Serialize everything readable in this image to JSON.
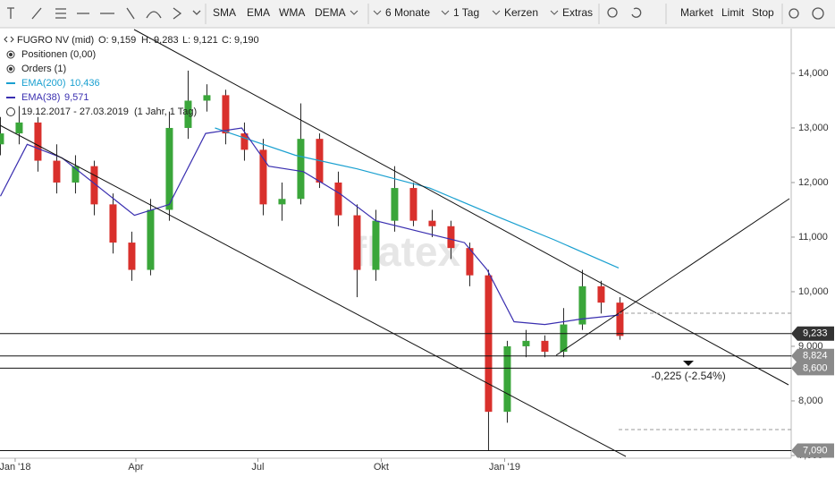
{
  "toolbar": {
    "indicators": [
      "SMA",
      "EMA",
      "WMA",
      "DEMA"
    ],
    "period": "6 Monate",
    "interval": "1 Tag",
    "style": "Kerzen",
    "extras": "Extras",
    "orders": [
      "Market",
      "Limit",
      "Stop"
    ]
  },
  "info": {
    "instrument": "FUGRO NV (mid)",
    "ohlc": [
      "O: 9,159",
      "H: 9,283",
      "L: 9,121",
      "C: 9,190"
    ],
    "positions": "Positionen (0,00)",
    "orders": "Orders (1)",
    "ema200": [
      "EMA(200)",
      "10,436"
    ],
    "ema38": [
      "EMA(38)",
      "9,571"
    ],
    "range": "19.12.2017 - 27.03.2019",
    "range_note": "(1 Jahr, 1 Tag)"
  },
  "chart_data": {
    "type": "candlestick",
    "watermark": "flatex",
    "xlim": [
      -11.3,
      578.7
    ],
    "xticks": [
      {
        "value": 0,
        "label": "Jan '18"
      },
      {
        "value": 90,
        "label": "Apr"
      },
      {
        "value": 181,
        "label": "Jul"
      },
      {
        "value": 273,
        "label": "Okt"
      },
      {
        "value": 365,
        "label": "Jan '19"
      }
    ],
    "ylim": [
      6.95,
      14.77
    ],
    "yticks": [
      {
        "value": 7,
        "label": "7,000"
      },
      {
        "value": 8,
        "label": "8,000"
      },
      {
        "value": 9,
        "label": "9,000"
      },
      {
        "value": 10,
        "label": "10,000"
      },
      {
        "value": 11,
        "label": "11,000"
      },
      {
        "value": 12,
        "label": "12,000"
      },
      {
        "value": 13,
        "label": "13,000"
      },
      {
        "value": 14,
        "label": "14,000"
      }
    ],
    "candles": {
      "up_color": "#3aa63a",
      "down_color": "#d9302c",
      "x": [
        -11,
        3,
        17,
        31,
        45,
        59,
        73,
        87,
        101,
        115,
        129,
        143,
        157,
        171,
        185,
        199,
        213,
        227,
        241,
        255,
        269,
        283,
        297,
        311,
        325,
        339,
        353,
        367,
        381,
        395,
        409,
        423,
        437,
        451
      ],
      "open": [
        12.7,
        12.9,
        13.1,
        12.4,
        12.0,
        12.3,
        11.6,
        10.9,
        10.4,
        11.5,
        13.0,
        13.5,
        13.6,
        12.9,
        12.6,
        11.6,
        11.7,
        12.8,
        12.0,
        11.4,
        10.4,
        11.3,
        11.9,
        11.3,
        11.2,
        10.8,
        10.3,
        7.8,
        9.0,
        9.1,
        8.9,
        9.4,
        10.1,
        9.8
      ],
      "high": [
        13.2,
        13.4,
        13.2,
        12.7,
        12.5,
        12.4,
        11.8,
        11.1,
        11.7,
        13.3,
        14.05,
        13.8,
        13.7,
        13.1,
        12.8,
        12.0,
        13.45,
        12.9,
        12.2,
        11.6,
        11.5,
        12.3,
        12.0,
        11.5,
        11.3,
        10.9,
        10.4,
        9.1,
        9.3,
        9.2,
        9.7,
        10.4,
        10.2,
        9.9
      ],
      "low": [
        12.5,
        12.7,
        12.2,
        11.8,
        11.8,
        11.4,
        10.7,
        10.2,
        10.3,
        11.3,
        12.8,
        13.3,
        12.7,
        12.4,
        11.4,
        11.3,
        11.6,
        11.9,
        11.2,
        9.9,
        10.2,
        11.1,
        11.2,
        11.0,
        10.6,
        10.1,
        7.09,
        7.6,
        8.8,
        8.8,
        8.8,
        9.3,
        9.6,
        9.12
      ],
      "close": [
        12.9,
        13.1,
        12.4,
        12.0,
        12.3,
        11.6,
        10.9,
        10.4,
        11.5,
        13.0,
        13.5,
        13.6,
        12.9,
        12.6,
        11.6,
        11.7,
        12.8,
        12.0,
        11.4,
        10.4,
        11.3,
        11.9,
        11.3,
        11.2,
        10.8,
        10.3,
        7.8,
        9.0,
        9.1,
        8.9,
        9.4,
        10.1,
        9.8,
        9.19
      ]
    },
    "series": [
      {
        "name": "EMA(200)",
        "color": "#1aa0d0",
        "x": [
          149,
          209,
          255,
          309,
          362,
          402,
          450
        ],
        "values": [
          13.0,
          12.5,
          12.25,
          11.9,
          11.35,
          10.95,
          10.436
        ]
      },
      {
        "name": "EMA(38)",
        "color": "#3a2fb0",
        "x": [
          -11,
          9,
          35,
          89,
          115,
          142,
          169,
          189,
          215,
          242,
          269,
          302,
          335,
          352,
          372,
          395,
          422,
          450
        ],
        "values": [
          11.75,
          12.7,
          12.45,
          11.4,
          11.6,
          12.9,
          13.0,
          12.3,
          12.2,
          11.8,
          11.3,
          11.1,
          10.9,
          10.4,
          9.45,
          9.4,
          9.5,
          9.571
        ]
      }
    ],
    "price_lines": [
      {
        "value": 9.233,
        "label": "9,233"
      },
      {
        "value": 8.824,
        "label": "8,824"
      },
      {
        "value": 8.6,
        "label": "8,600"
      },
      {
        "value": 7.09,
        "label": "7,090"
      }
    ],
    "annotation": "-0,225 (-2.54%)"
  }
}
